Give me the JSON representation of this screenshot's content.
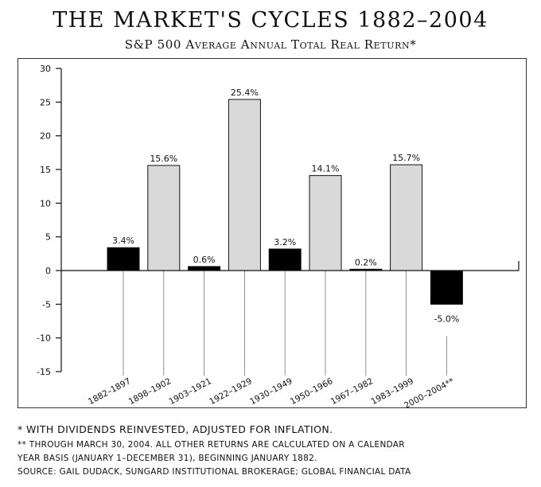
{
  "title": "THE MARKET'S CYCLES 1882–2004",
  "subtitle": "S&P 500 Average Annual Total Real Return*",
  "chart_data": {
    "type": "bar",
    "title": "THE MARKET'S CYCLES 1882–2004",
    "subtitle": "S&P 500 Average Annual Total Real Return*",
    "xlabel": "",
    "ylabel": "",
    "ylim": [
      -15,
      30
    ],
    "yticks": [
      -15,
      -10,
      -5,
      0,
      5,
      10,
      15,
      20,
      25,
      30
    ],
    "yticklabels": [
      "-15",
      "-10",
      "-5",
      "0",
      "5",
      "10",
      "15",
      "20",
      "25",
      "30"
    ],
    "grid": false,
    "categories": [
      "1882–1897",
      "1898–1902",
      "1903–1921",
      "1922–1929",
      "1930–1949",
      "1950–1966",
      "1967–1982",
      "1983–1999",
      "2000–2004**"
    ],
    "values": [
      3.4,
      15.6,
      0.6,
      25.4,
      3.2,
      14.1,
      0.2,
      15.7,
      -5.0
    ],
    "labels": [
      "3.4%",
      "15.6%",
      "0.6%",
      "25.4%",
      "3.2%",
      "14.1%",
      "0.2%",
      "15.7%",
      "-5.0%"
    ],
    "bar_colors": [
      "#000000",
      "#d9d9d9",
      "#000000",
      "#d9d9d9",
      "#000000",
      "#d9d9d9",
      "#000000",
      "#d9d9d9",
      "#000000"
    ]
  },
  "footnotes": {
    "note1": "* With dividends reinvested, adjusted for inflation.",
    "note2": "** Through March 30, 2004. All other returns are calculated on a calendar",
    "note3": "year basis (January 1–December 31), beginning January 1882.",
    "note4": "Source: Gail Dudack, SunGard Institutional Brokerage; Global Financial Data"
  }
}
